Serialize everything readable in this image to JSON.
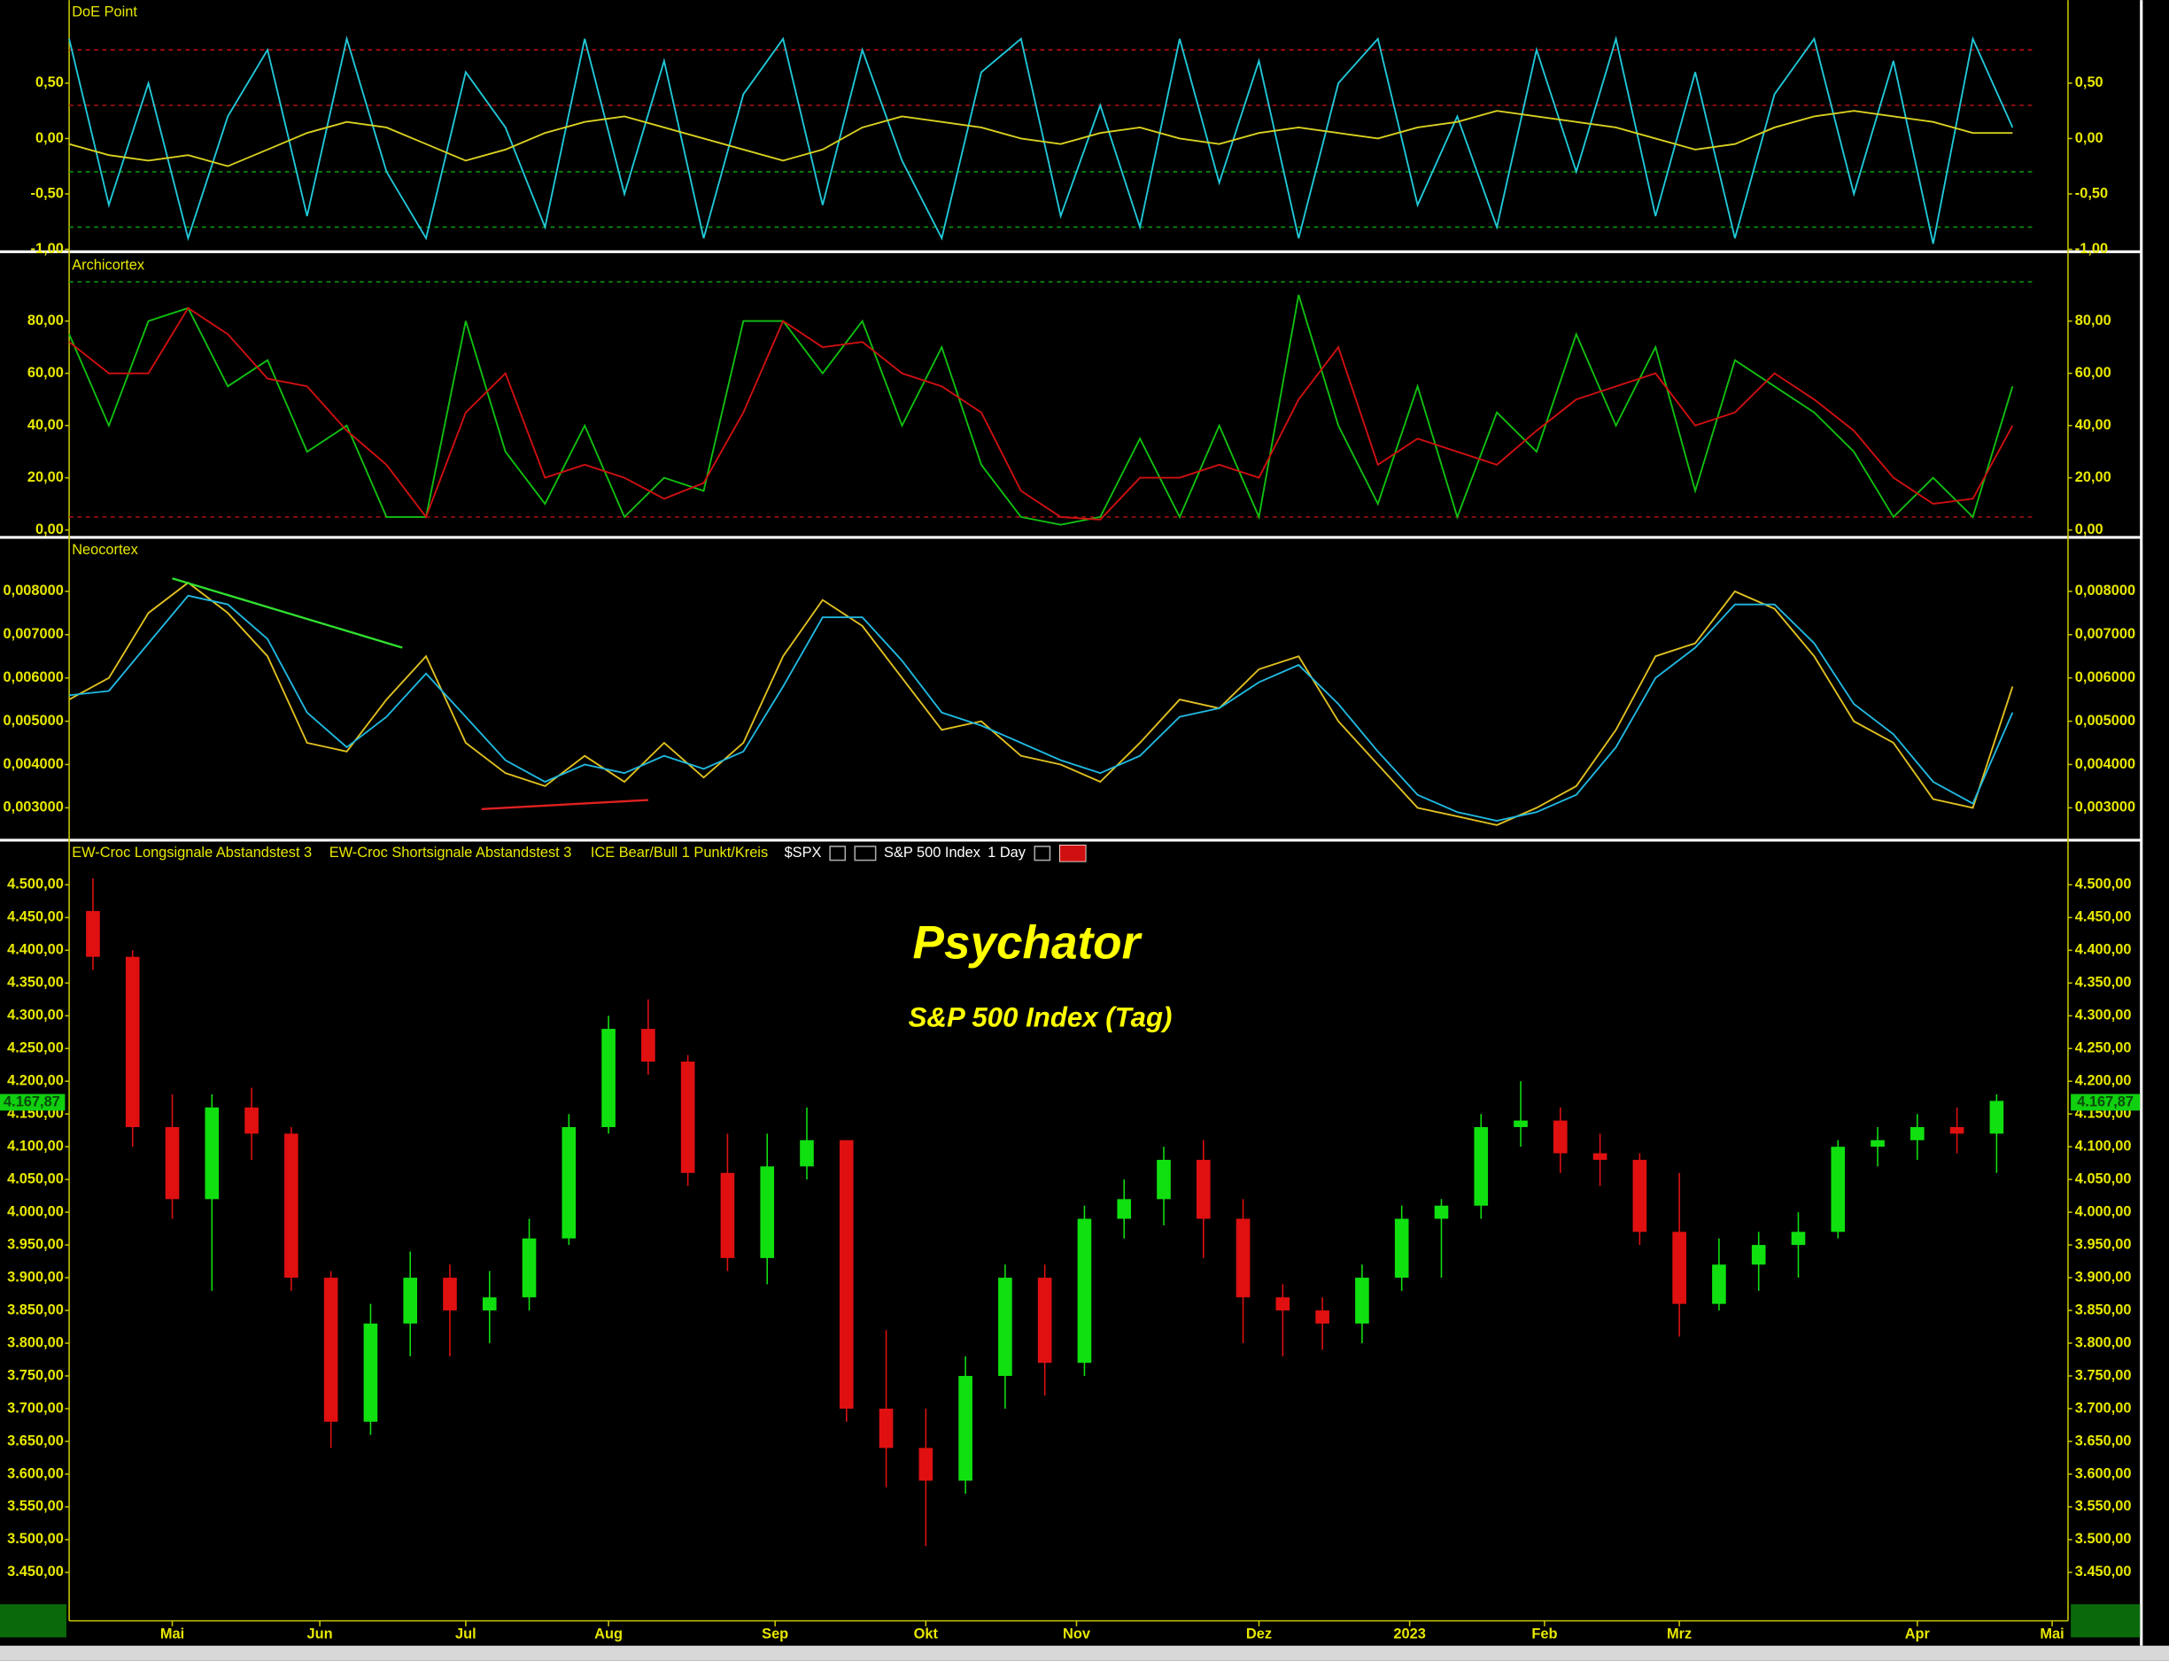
{
  "chart_data": [
    {
      "type": "line",
      "title": "DoE Point",
      "xlim": [
        0,
        252
      ],
      "ylim": [
        -1.01,
        1.25
      ],
      "yticks": [
        {
          "value": -1,
          "label": "-1,00"
        },
        {
          "value": -0.5,
          "label": "-0,50"
        },
        {
          "value": 0,
          "label": "0,00"
        },
        {
          "value": 0.5,
          "label": "0,50"
        }
      ],
      "ref_lines": [
        {
          "value": 0.8,
          "color": "#d01010"
        },
        {
          "value": 0.3,
          "color": "#a01010"
        },
        {
          "value": -0.3,
          "color": "#10a010"
        },
        {
          "value": -0.8,
          "color": "#10a010"
        }
      ],
      "x": [
        0,
        5,
        10,
        15,
        20,
        25,
        30,
        35,
        40,
        45,
        50,
        55,
        60,
        65,
        70,
        75,
        80,
        85,
        90,
        95,
        100,
        105,
        110,
        115,
        120,
        125,
        130,
        135,
        140,
        145,
        150,
        155,
        160,
        165,
        170,
        175,
        180,
        185,
        190,
        195,
        200,
        205,
        210,
        215,
        220,
        225,
        230,
        235,
        240,
        245
      ],
      "series": [
        {
          "color": "#20c8d8",
          "values": [
            0.9,
            -0.6,
            0.5,
            -0.9,
            0.2,
            0.8,
            -0.7,
            0.9,
            -0.3,
            -0.9,
            0.6,
            0.1,
            -0.8,
            0.9,
            -0.5,
            0.7,
            -0.9,
            0.4,
            0.9,
            -0.6,
            0.8,
            -0.2,
            -0.9,
            0.6,
            0.9,
            -0.7,
            0.3,
            -0.8,
            0.9,
            -0.4,
            0.7,
            -0.9,
            0.5,
            0.9,
            -0.6,
            0.2,
            -0.8,
            0.8,
            -0.3,
            0.9,
            -0.7,
            0.6,
            -0.9,
            0.4,
            0.9,
            -0.5,
            0.7,
            -0.95,
            0.9,
            0.1
          ]
        },
        {
          "color": "#d8d020",
          "values": [
            -0.05,
            -0.15,
            -0.2,
            -0.15,
            -0.25,
            -0.1,
            0.05,
            0.15,
            0.1,
            -0.05,
            -0.2,
            -0.1,
            0.05,
            0.15,
            0.2,
            0.1,
            0,
            -0.1,
            -0.2,
            -0.1,
            0.1,
            0.2,
            0.15,
            0.1,
            0,
            -0.05,
            0.05,
            0.1,
            0,
            -0.05,
            0.05,
            0.1,
            0.05,
            0,
            0.1,
            0.15,
            0.25,
            0.2,
            0.15,
            0.1,
            0,
            -0.1,
            -0.05,
            0.1,
            0.2,
            0.25,
            0.2,
            0.15,
            0.05,
            0.05
          ]
        }
      ]
    },
    {
      "type": "line",
      "title": "Archicortex",
      "xlim": [
        0,
        252
      ],
      "ylim": [
        -2,
        106
      ],
      "yticks": [
        {
          "value": 0,
          "label": "0,00"
        },
        {
          "value": 20,
          "label": "20,00"
        },
        {
          "value": 40,
          "label": "40,00"
        },
        {
          "value": 60,
          "label": "60,00"
        },
        {
          "value": 80,
          "label": "80,00"
        }
      ],
      "ref_lines": [
        {
          "value": 95,
          "color": "#10a010"
        },
        {
          "value": 5,
          "color": "#b01010"
        }
      ],
      "x": [
        0,
        5,
        10,
        15,
        20,
        25,
        30,
        35,
        40,
        45,
        50,
        55,
        60,
        65,
        70,
        75,
        80,
        85,
        90,
        95,
        100,
        105,
        110,
        115,
        120,
        125,
        130,
        135,
        140,
        145,
        150,
        155,
        160,
        165,
        170,
        175,
        180,
        185,
        190,
        195,
        200,
        205,
        210,
        215,
        220,
        225,
        230,
        235,
        240,
        245
      ],
      "series": [
        {
          "color": "#10c010",
          "values": [
            75,
            40,
            80,
            85,
            55,
            65,
            30,
            40,
            5,
            5,
            80,
            30,
            10,
            40,
            5,
            20,
            15,
            80,
            80,
            60,
            80,
            40,
            70,
            25,
            5,
            2,
            5,
            35,
            5,
            40,
            5,
            90,
            40,
            10,
            55,
            5,
            45,
            30,
            75,
            40,
            70,
            15,
            65,
            55,
            45,
            30,
            5,
            20,
            5,
            55
          ]
        },
        {
          "color": "#d01010",
          "values": [
            72,
            60,
            60,
            85,
            75,
            58,
            55,
            38,
            25,
            5,
            45,
            60,
            20,
            25,
            20,
            12,
            18,
            45,
            80,
            70,
            72,
            60,
            55,
            45,
            15,
            5,
            4,
            20,
            20,
            25,
            20,
            50,
            70,
            25,
            35,
            30,
            25,
            38,
            50,
            55,
            60,
            40,
            45,
            60,
            50,
            38,
            20,
            10,
            12,
            40
          ]
        }
      ]
    },
    {
      "type": "line",
      "title": "Neocortex",
      "xlim": [
        0,
        252
      ],
      "ylim": [
        0.0023,
        0.0092
      ],
      "yticks": [
        {
          "value": 0.003,
          "label": "0,003000"
        },
        {
          "value": 0.004,
          "label": "0,004000"
        },
        {
          "value": 0.005,
          "label": "0,005000"
        },
        {
          "value": 0.006,
          "label": "0,006000"
        },
        {
          "value": 0.007,
          "label": "0,007000"
        },
        {
          "value": 0.008,
          "label": "0,008000"
        }
      ],
      "x": [
        0,
        5,
        10,
        15,
        20,
        25,
        30,
        35,
        40,
        45,
        50,
        55,
        60,
        65,
        70,
        75,
        80,
        85,
        90,
        95,
        100,
        105,
        110,
        115,
        120,
        125,
        130,
        135,
        140,
        145,
        150,
        155,
        160,
        165,
        170,
        175,
        180,
        185,
        190,
        195,
        200,
        205,
        210,
        215,
        220,
        225,
        230,
        235,
        240,
        245
      ],
      "series": [
        {
          "color": "#e0c020",
          "values": [
            0.0055,
            0.006,
            0.0075,
            0.0082,
            0.0075,
            0.0065,
            0.0045,
            0.0043,
            0.0055,
            0.0065,
            0.0045,
            0.0038,
            0.0035,
            0.0042,
            0.0036,
            0.0045,
            0.0037,
            0.0045,
            0.0065,
            0.0078,
            0.0072,
            0.006,
            0.0048,
            0.005,
            0.0042,
            0.004,
            0.0036,
            0.0045,
            0.0055,
            0.0053,
            0.0062,
            0.0065,
            0.005,
            0.004,
            0.003,
            0.0028,
            0.0026,
            0.003,
            0.0035,
            0.0048,
            0.0065,
            0.0068,
            0.008,
            0.0076,
            0.0065,
            0.005,
            0.0045,
            0.0032,
            0.003,
            0.0058
          ]
        },
        {
          "color": "#20b8e0",
          "values": [
            0.0056,
            0.0057,
            0.0068,
            0.0079,
            0.0077,
            0.0069,
            0.0052,
            0.0044,
            0.0051,
            0.0061,
            0.0051,
            0.0041,
            0.0036,
            0.004,
            0.0038,
            0.0042,
            0.0039,
            0.0043,
            0.0058,
            0.0074,
            0.0074,
            0.0064,
            0.0052,
            0.0049,
            0.0045,
            0.0041,
            0.0038,
            0.0042,
            0.0051,
            0.0053,
            0.0059,
            0.0063,
            0.0054,
            0.0043,
            0.0033,
            0.0029,
            0.0027,
            0.0029,
            0.0033,
            0.0044,
            0.006,
            0.0067,
            0.0077,
            0.0077,
            0.0068,
            0.0054,
            0.0047,
            0.0036,
            0.0031,
            0.0052
          ]
        }
      ],
      "trendlines": [
        {
          "x": [
            13,
            42
          ],
          "y": [
            0.0083,
            0.0067
          ],
          "color": "#30e030"
        },
        {
          "x": [
            52,
            73
          ],
          "y": [
            0.00297,
            0.00318
          ],
          "color": "#e02020"
        }
      ]
    },
    {
      "type": "candlestick",
      "title": "Psychator",
      "subtitle": "S&P 500 Index (Tag)",
      "legend": [
        "EW-Croc Longsignale Abstandstest 3",
        "EW-Croc Shortsignale Abstandstest 3",
        "ICE Bear/Bull 1 Punkt/Kreis"
      ],
      "symbol": "$SPX",
      "instrument": "S&P 500 Index",
      "interval": "1 Day",
      "xlim": [
        0,
        252
      ],
      "xticks": [
        {
          "value": 13,
          "label": "Mai"
        },
        {
          "value": 31.6,
          "label": "Jun"
        },
        {
          "value": 50,
          "label": "Jul"
        },
        {
          "value": 68,
          "label": "Aug"
        },
        {
          "value": 89,
          "label": "Sep"
        },
        {
          "value": 108,
          "label": "Okt"
        },
        {
          "value": 127,
          "label": "Nov"
        },
        {
          "value": 150,
          "label": "Dez"
        },
        {
          "value": 169,
          "label": "2023"
        },
        {
          "value": 186,
          "label": "Feb"
        },
        {
          "value": 203,
          "label": "Mrz"
        },
        {
          "value": 233,
          "label": "Apr"
        },
        {
          "value": 250,
          "label": "Mai"
        }
      ],
      "ylim": [
        3376,
        4565
      ],
      "yticks": [
        {
          "value": 3450,
          "label": "3.450,00"
        },
        {
          "value": 3500,
          "label": "3.500,00"
        },
        {
          "value": 3550,
          "label": "3.550,00"
        },
        {
          "value": 3600,
          "label": "3.600,00"
        },
        {
          "value": 3650,
          "label": "3.650,00"
        },
        {
          "value": 3700,
          "label": "3.700,00"
        },
        {
          "value": 3750,
          "label": "3.750,00"
        },
        {
          "value": 3800,
          "label": "3.800,00"
        },
        {
          "value": 3850,
          "label": "3.850,00"
        },
        {
          "value": 3900,
          "label": "3.900,00"
        },
        {
          "value": 3950,
          "label": "3.950,00"
        },
        {
          "value": 4000,
          "label": "4.000,00"
        },
        {
          "value": 4050,
          "label": "4.050,00"
        },
        {
          "value": 4100,
          "label": "4.100,00"
        },
        {
          "value": 4150,
          "label": "4.150,00"
        },
        {
          "value": 4200,
          "label": "4.200,00"
        },
        {
          "value": 4250,
          "label": "4.250,00"
        },
        {
          "value": 4300,
          "label": "4.300,00"
        },
        {
          "value": 4350,
          "label": "4.350,00"
        },
        {
          "value": 4400,
          "label": "4.400,00"
        },
        {
          "value": 4450,
          "label": "4.450,00"
        },
        {
          "value": 4500,
          "label": "4.500,00"
        }
      ],
      "last_price": {
        "value": 4167.87,
        "label": "4.167,87"
      },
      "up_color": "#10e010",
      "down_color": "#e01010",
      "x": [
        3,
        8,
        13,
        18,
        23,
        28,
        33,
        38,
        43,
        48,
        53,
        58,
        63,
        68,
        73,
        78,
        83,
        88,
        93,
        98,
        103,
        108,
        113,
        118,
        123,
        128,
        133,
        138,
        143,
        148,
        153,
        158,
        163,
        168,
        173,
        178,
        183,
        188,
        193,
        198,
        203,
        208,
        213,
        218,
        223,
        228,
        233,
        238,
        243
      ],
      "open": [
        4460,
        4390,
        4130,
        4020,
        4160,
        4120,
        3900,
        3680,
        3830,
        3900,
        3850,
        3870,
        3960,
        4130,
        4280,
        4230,
        4060,
        3930,
        4070,
        4110,
        3700,
        3640,
        3590,
        3750,
        3900,
        3770,
        3990,
        4020,
        4080,
        3990,
        3870,
        3850,
        3830,
        3900,
        3990,
        4010,
        4130,
        4140,
        4090,
        4080,
        3970,
        3860,
        3920,
        3950,
        3970,
        4100,
        4110,
        4130,
        4120
      ],
      "high": [
        4510,
        4400,
        4180,
        4180,
        4190,
        4130,
        3910,
        3860,
        3940,
        3920,
        3910,
        3990,
        4150,
        4300,
        4325,
        4240,
        4120,
        4120,
        4160,
        4110,
        3820,
        3700,
        3780,
        3920,
        3920,
        4010,
        4050,
        4100,
        4110,
        4020,
        3890,
        3870,
        3920,
        4010,
        4020,
        4150,
        4200,
        4160,
        4120,
        4090,
        4060,
        3960,
        3970,
        4000,
        4110,
        4130,
        4150,
        4160,
        4180
      ],
      "low": [
        4370,
        4100,
        3990,
        3880,
        4080,
        3880,
        3640,
        3660,
        3780,
        3780,
        3800,
        3850,
        3950,
        4120,
        4210,
        4040,
        3910,
        3890,
        4050,
        3680,
        3580,
        3490,
        3570,
        3700,
        3720,
        3750,
        3960,
        3980,
        3930,
        3800,
        3780,
        3790,
        3800,
        3880,
        3900,
        3990,
        4100,
        4060,
        4040,
        3950,
        3810,
        3850,
        3880,
        3900,
        3960,
        4070,
        4080,
        4090,
        4060
      ],
      "close": [
        4390,
        4130,
        4020,
        4160,
        4120,
        3900,
        3680,
        3830,
        3900,
        3850,
        3870,
        3960,
        4130,
        4280,
        4230,
        4060,
        3930,
        4070,
        4110,
        3700,
        3640,
        3590,
        3750,
        3900,
        3770,
        3990,
        4020,
        4080,
        3990,
        3870,
        3850,
        3830,
        3900,
        3990,
        4010,
        4130,
        4140,
        4090,
        4080,
        3970,
        3860,
        3920,
        3950,
        3970,
        4100,
        4110,
        4130,
        4120,
        4170
      ]
    }
  ]
}
